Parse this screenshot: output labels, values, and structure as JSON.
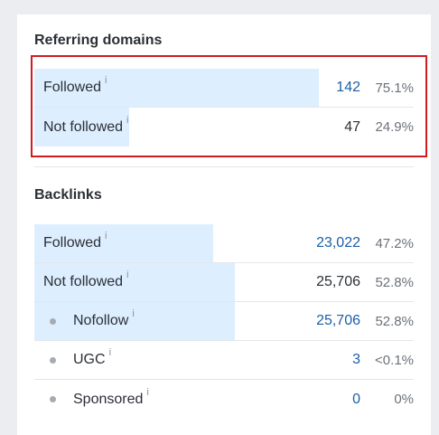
{
  "referring_domains": {
    "title": "Referring domains",
    "rows": [
      {
        "label": "Followed",
        "info": "i",
        "value": "142",
        "pct": "75.1%",
        "fill": 0.751
      },
      {
        "label": "Not followed",
        "info": "i",
        "value": "47",
        "pct": "24.9%",
        "fill": 0.249
      }
    ]
  },
  "backlinks": {
    "title": "Backlinks",
    "rows": [
      {
        "label": "Followed",
        "info": "i",
        "value": "23,022",
        "pct": "47.2%",
        "fill": 0.472
      },
      {
        "label": "Not followed",
        "info": "i",
        "value": "25,706",
        "pct": "52.8%",
        "fill": 0.528
      },
      {
        "label": "Nofollow",
        "info": "i",
        "value": "25,706",
        "pct": "52.8%",
        "fill": 0.528
      },
      {
        "label": "UGC",
        "info": "i",
        "value": "3",
        "pct": "<0.1%",
        "fill": 0
      },
      {
        "label": "Sponsored",
        "info": "i",
        "value": "0",
        "pct": "0%",
        "fill": 0
      }
    ]
  },
  "colors": {
    "bar_fill": "#ddeeff",
    "link_value": "#1a5fa8",
    "highlight_border": "#d11a22"
  }
}
